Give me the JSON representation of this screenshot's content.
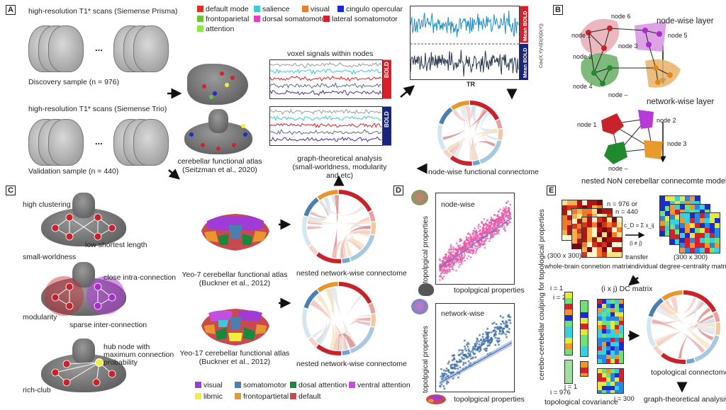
{
  "panels": {
    "A": "A",
    "B": "B",
    "C": "C",
    "D": "D",
    "E": "E"
  },
  "panelA": {
    "scan1": "high-resolution T1* scans (Siemense Prisma)",
    "discovery": "Discovery sample (n = 976)",
    "scan2": "high-resolution T1* scans (Siemense Trio)",
    "validation": "Validation sample (n = 440)",
    "ellipsis": "...",
    "voxel_title": "voxel signals within nodes",
    "bold": "BOLD",
    "atlas": "cerebellar functional atlas",
    "atlas_ref": "(Seitzman et al., 2020)",
    "graph": "graph-theoretical analysis",
    "graph_sub": "(small-worldness, modularity and etc)",
    "mean_bold": "Mean BOLD",
    "tr": "TR",
    "corr": "Cov(X,Y)/√(D(X)D(Y))",
    "node_connectome": "node-wise functional connectome"
  },
  "legend1": [
    {
      "label": "default mode",
      "color": "#e03024"
    },
    {
      "label": "salience",
      "color": "#3ec8d9"
    },
    {
      "label": "visual",
      "color": "#e87d2a"
    },
    {
      "label": "cingulo opercular",
      "color": "#1c2bd0"
    },
    {
      "label": "frontoparietal",
      "color": "#6bc43a"
    },
    {
      "label": "dorsal somatomotor",
      "color": "#e23fc2"
    },
    {
      "label": "lateral somatomotor",
      "color": "#d8202a"
    },
    {
      "label": "attention",
      "color": "#8fe64a"
    }
  ],
  "panelB": {
    "node_layer": "node-wise layer",
    "network_layer": "network-wise layer",
    "nodes_top": [
      "node 6",
      "node 1",
      "node 5",
      "node 3",
      "node 2",
      "node 4",
      "node –"
    ],
    "nodes_bottom": [
      "node 1",
      "node 2",
      "node 3",
      "node –"
    ],
    "model": "nested NoN cerebellar connecomte model"
  },
  "panelC": {
    "high_clustering": "high clustering",
    "low_path": "low shortest length",
    "small_world": "small-worldness",
    "close_intra": "close intra-connection",
    "modularity": "modularity",
    "sparse_inter": "sparse inter-connection",
    "hub": "hub node with\nmaximum connection\nprobability",
    "rich_club": "rich-club",
    "yeo7": "Yeo-7 cerebellar functional atlas",
    "yeo7_ref": "(Buckner et al., 2012)",
    "yeo17": "Yeo-17 cerebellar functional atlas",
    "yeo17_ref": "(Buckner et al., 2012)",
    "nested": "nested network-wise connectome",
    "nested2": "nested network-wise connectome"
  },
  "legend2": [
    {
      "label": "visual",
      "color": "#a13bd6"
    },
    {
      "label": "somatomotor",
      "color": "#4a7fb0"
    },
    {
      "label": "dosal attention",
      "color": "#168a3a"
    },
    {
      "label": "ventral attention",
      "color": "#c34fe0"
    },
    {
      "label": "libmic",
      "color": "#f2ef3a"
    },
    {
      "label": "frontopartietal",
      "color": "#e8962e"
    },
    {
      "label": "default",
      "color": "#c94a4e"
    }
  ],
  "panelD": {
    "ylabel": "topolpgical properties",
    "xlabel": "topolpgical properties",
    "node_wise": "node-wise",
    "network_wise": "network-wise",
    "side_label": "cerebo-cerebellar coulping for topological properties"
  },
  "panelE": {
    "n": "n = 976 or",
    "n2": "n = 440",
    "size1": "(300 x 300)",
    "size2": "(300 x 300)",
    "formula": "c_D = Σ x_ij",
    "cond": "(i ≠ j)",
    "transfer": "transfer",
    "whole_brain": "whole-brain connetion matrix",
    "degree": "individual degree-centrality matrix",
    "dc_matrix": "(i x j) DC matrix",
    "i1": "i = 1",
    "i2": "i = 2",
    "i976": "i = 976",
    "j1": "j = 1",
    "j300": "j = 300",
    "topo_cov": "topological covariance",
    "topo_conn": "topological connectome",
    "graph2": "graph-theoretical analysis"
  },
  "chart_data": [
    {
      "type": "scatter",
      "title": "node-wise",
      "xlabel": "topolpgical properties",
      "ylabel": "topolpgical properties",
      "series": [
        {
          "name": "node-wise",
          "color": "#e65aa8"
        }
      ]
    },
    {
      "type": "scatter",
      "title": "network-wise",
      "xlabel": "topolpgical properties",
      "ylabel": "topolpgical properties",
      "series": [
        {
          "name": "network-wise",
          "color": "#3d6fa8"
        }
      ]
    }
  ]
}
